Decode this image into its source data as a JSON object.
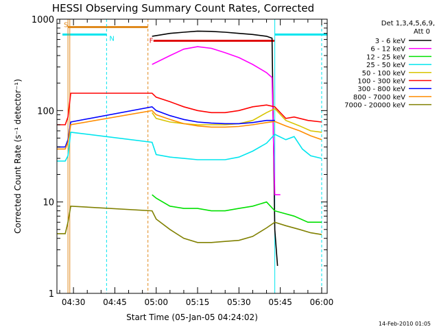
{
  "colors": {
    "background": "#ffffff",
    "axis": "#000000",
    "flag_s": "#e08a1e",
    "flag_n": "#00e5ee",
    "flag_f": "#e01010",
    "flag_n_bar": "#00e5ee"
  },
  "legend": {
    "header1": "Det 1,3,4,5,6,9,",
    "header2": "Att 0"
  },
  "flags": {
    "s": "S",
    "n": "N",
    "f": "F"
  },
  "footer_date": "14-Feb-2010 01:05",
  "chart_data": {
    "type": "line",
    "title": "HESSI Observing Summary Count Rates, Corrected",
    "xlabel": "Start Time (05-Jan-05 04:24:02)",
    "ylabel": "Corrected Count Rate (s⁻¹ detector⁻¹)",
    "x_unit": "UT time (hh:mm) on 05-Jan-2005",
    "x_range": [
      "04:24",
      "06:02"
    ],
    "x_ticks": [
      "04:30",
      "04:45",
      "05:00",
      "05:15",
      "05:30",
      "05:45",
      "06:00"
    ],
    "y_scale": "log",
    "y_range": [
      1,
      1000
    ],
    "y_ticks": [
      "1",
      "10",
      "100",
      "1000"
    ],
    "grid": false,
    "legend_position": "right",
    "series": [
      {
        "name": "3 - 6 keV",
        "color": "#000000",
        "points": [
          [
            "04:58:30",
            650
          ],
          [
            "05:05",
            700
          ],
          [
            "05:10",
            720
          ],
          [
            "05:15",
            740
          ],
          [
            "05:20",
            735
          ],
          [
            "05:25",
            720
          ],
          [
            "05:30",
            700
          ],
          [
            "05:35",
            680
          ],
          [
            "05:40",
            650
          ],
          [
            "05:42",
            620
          ],
          [
            "05:43",
            5
          ],
          [
            "05:44",
            2
          ]
        ]
      },
      {
        "name": "6 - 12 keV",
        "color": "#ff00ff",
        "points": [
          [
            "04:58:30",
            320
          ],
          [
            "05:05",
            400
          ],
          [
            "05:10",
            470
          ],
          [
            "05:15",
            500
          ],
          [
            "05:20",
            480
          ],
          [
            "05:25",
            430
          ],
          [
            "05:30",
            380
          ],
          [
            "05:35",
            320
          ],
          [
            "05:40",
            260
          ],
          [
            "05:42",
            230
          ],
          [
            "05:43",
            12
          ],
          [
            "05:45",
            12
          ]
        ]
      },
      {
        "name": "12 - 25 keV",
        "color": "#00e000",
        "points": [
          [
            "04:58:30",
            12
          ],
          [
            "05:00",
            11
          ],
          [
            "05:05",
            9
          ],
          [
            "05:10",
            8.5
          ],
          [
            "05:15",
            8.5
          ],
          [
            "05:20",
            8
          ],
          [
            "05:25",
            8
          ],
          [
            "05:30",
            8.5
          ],
          [
            "05:35",
            9
          ],
          [
            "05:40",
            10
          ],
          [
            "05:43",
            8
          ],
          [
            "05:50",
            7
          ],
          [
            "05:55",
            6
          ],
          [
            "06:00",
            6
          ]
        ]
      },
      {
        "name": "25 - 50 keV",
        "color": "#00e5ee",
        "points": [
          [
            "04:24",
            28
          ],
          [
            "04:27",
            28
          ],
          [
            "04:28",
            32
          ],
          [
            "04:29",
            58
          ],
          [
            "04:58:30",
            45
          ],
          [
            "05:00",
            33
          ],
          [
            "05:05",
            31
          ],
          [
            "05:10",
            30
          ],
          [
            "05:15",
            29
          ],
          [
            "05:20",
            29
          ],
          [
            "05:25",
            29
          ],
          [
            "05:30",
            31
          ],
          [
            "05:35",
            36
          ],
          [
            "05:40",
            44
          ],
          [
            "05:43",
            55
          ],
          [
            "05:47",
            48
          ],
          [
            "05:50",
            52
          ],
          [
            "05:53",
            38
          ],
          [
            "05:56",
            32
          ],
          [
            "06:00",
            30
          ]
        ]
      },
      {
        "name": "50 - 100 keV",
        "color": "#d8c400",
        "points": [
          [
            "04:58:30",
            95
          ],
          [
            "05:00",
            82
          ],
          [
            "05:05",
            75
          ],
          [
            "05:10",
            72
          ],
          [
            "05:15",
            70
          ],
          [
            "05:20",
            70
          ],
          [
            "05:25",
            70
          ],
          [
            "05:30",
            72
          ],
          [
            "05:35",
            78
          ],
          [
            "05:40",
            95
          ],
          [
            "05:43",
            105
          ],
          [
            "05:47",
            78
          ],
          [
            "05:52",
            68
          ],
          [
            "05:56",
            60
          ],
          [
            "06:00",
            58
          ]
        ]
      },
      {
        "name": "100 - 300 keV",
        "color": "#ff0000",
        "points": [
          [
            "04:24",
            70
          ],
          [
            "04:27",
            70
          ],
          [
            "04:28",
            85
          ],
          [
            "04:29",
            155
          ],
          [
            "04:58:30",
            155
          ],
          [
            "05:00",
            140
          ],
          [
            "05:05",
            125
          ],
          [
            "05:10",
            110
          ],
          [
            "05:15",
            100
          ],
          [
            "05:20",
            95
          ],
          [
            "05:25",
            95
          ],
          [
            "05:30",
            100
          ],
          [
            "05:35",
            110
          ],
          [
            "05:40",
            115
          ],
          [
            "05:43",
            110
          ],
          [
            "05:47",
            82
          ],
          [
            "05:50",
            85
          ],
          [
            "05:55",
            78
          ],
          [
            "06:00",
            75
          ]
        ]
      },
      {
        "name": "300 - 800 keV",
        "color": "#0000ff",
        "points": [
          [
            "04:24",
            40
          ],
          [
            "04:27",
            40
          ],
          [
            "04:28",
            48
          ],
          [
            "04:29",
            75
          ],
          [
            "04:58:30",
            110
          ],
          [
            "05:00",
            100
          ],
          [
            "05:05",
            88
          ],
          [
            "05:10",
            80
          ],
          [
            "05:15",
            75
          ],
          [
            "05:20",
            73
          ],
          [
            "05:25",
            72
          ],
          [
            "05:30",
            72
          ],
          [
            "05:35",
            74
          ],
          [
            "05:40",
            78
          ],
          [
            "05:43",
            78
          ]
        ]
      },
      {
        "name": "800 - 7000 keV",
        "color": "#ff8c00",
        "points": [
          [
            "04:24",
            38
          ],
          [
            "04:27",
            38
          ],
          [
            "04:28",
            45
          ],
          [
            "04:29",
            70
          ],
          [
            "04:58:30",
            100
          ],
          [
            "05:00",
            90
          ],
          [
            "05:05",
            80
          ],
          [
            "05:10",
            72
          ],
          [
            "05:15",
            68
          ],
          [
            "05:20",
            66
          ],
          [
            "05:25",
            66
          ],
          [
            "05:30",
            67
          ],
          [
            "05:35",
            70
          ],
          [
            "05:40",
            74
          ],
          [
            "05:43",
            76
          ],
          [
            "05:47",
            68
          ],
          [
            "05:52",
            60
          ],
          [
            "05:56",
            53
          ],
          [
            "06:00",
            48
          ]
        ]
      },
      {
        "name": "7000 - 20000 keV",
        "color": "#808000",
        "points": [
          [
            "04:24",
            4.5
          ],
          [
            "04:27",
            4.5
          ],
          [
            "04:28",
            6
          ],
          [
            "04:29",
            9
          ],
          [
            "04:58:30",
            8
          ],
          [
            "05:00",
            6.5
          ],
          [
            "05:05",
            5
          ],
          [
            "05:10",
            4
          ],
          [
            "05:15",
            3.6
          ],
          [
            "05:20",
            3.6
          ],
          [
            "05:25",
            3.7
          ],
          [
            "05:30",
            3.8
          ],
          [
            "05:35",
            4.2
          ],
          [
            "05:40",
            5.2
          ],
          [
            "05:43",
            6
          ],
          [
            "05:47",
            5.5
          ],
          [
            "05:52",
            5
          ],
          [
            "05:56",
            4.6
          ],
          [
            "06:00",
            4.4
          ]
        ]
      }
    ]
  }
}
